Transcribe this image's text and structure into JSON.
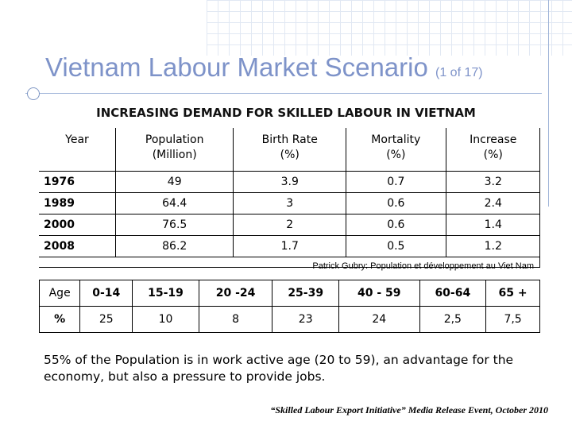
{
  "slide": {
    "title_main": "Vietnam Labour Market Scenario",
    "title_small": "(1 of 17)",
    "subtitle": "INCREASING DEMAND FOR SKILLED LABOUR IN VIETNAM"
  },
  "population_table": {
    "headers": [
      [
        "Year"
      ],
      [
        "Population",
        "(Million)"
      ],
      [
        "Birth Rate",
        "(%)"
      ],
      [
        "Mortality",
        "(%)"
      ],
      [
        "Increase",
        "(%)"
      ]
    ],
    "rows": [
      [
        "1976",
        "49",
        "3.9",
        "0.7",
        "3.2"
      ],
      [
        "1989",
        "64.4",
        "3",
        "0.6",
        "2.4"
      ],
      [
        "2000",
        "76.5",
        "2",
        "0.6",
        "1.4"
      ],
      [
        "2008",
        "86.2",
        "1.7",
        "0.5",
        "1.2"
      ]
    ],
    "source": "Patrick Gubry: Population et développement au Viet Nam"
  },
  "age_table": {
    "age_label": "Age",
    "percent_label": "%",
    "ages": [
      "0-14",
      "15-19",
      "20 -24",
      "25-39",
      "40 - 59",
      "60-64",
      "65 +"
    ],
    "percents": [
      "25",
      "10",
      "8",
      "23",
      "24",
      "2,5",
      "7,5"
    ]
  },
  "note": "55% of the Population is in work active age (20 to 59), an advantage for the economy, but also a pressure to provide jobs.",
  "footer": "“Skilled  Labour  Export Initiative” Media Release Event, October 2010",
  "colors": {
    "title": "#7e93c9",
    "decor": "#9fb4d8"
  }
}
